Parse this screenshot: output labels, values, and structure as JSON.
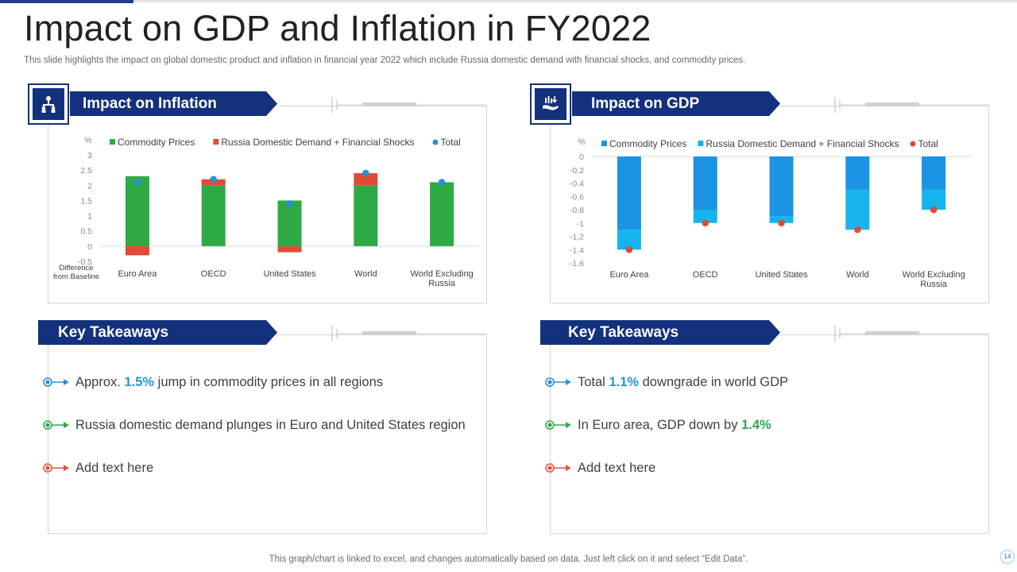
{
  "title": "Impact on GDP and Inflation in FY2022",
  "subtitle": "This slide highlights the impact on global domestic product and inflation in financial year 2022 which include Russia domestic demand with financial shocks, and commodity prices.",
  "colors": {
    "navy": "#14317d",
    "commodity_green": "#2eaa44",
    "russia_red": "#e14b35",
    "total_blue": "#2a8fd6",
    "commodity_blue": "#1a94e3",
    "russia_cyan": "#16b4ee",
    "total_red": "#dd4b39"
  },
  "inflation_panel": {
    "heading": "Impact on Inflation",
    "icon": "org-chart-icon"
  },
  "gdp_panel": {
    "heading": "Impact on GDP",
    "icon": "money-hand-icon"
  },
  "takeaways_left": {
    "heading": "Key Takeaways",
    "items": [
      {
        "pre": "Approx. ",
        "hl": "1.5%",
        "post": " jump  in commodity prices in all regions",
        "color": "#2a90d4",
        "hl_class": "hl-blue"
      },
      {
        "pre": "Russia domestic demand plunges  in Euro and United States region",
        "hl": "",
        "post": "",
        "color": "#2fa84a",
        "hl_class": "hl-green"
      },
      {
        "pre": "Add text here",
        "hl": "",
        "post": "",
        "color": "#e0533a",
        "hl_class": "hl-blue"
      }
    ]
  },
  "takeaways_right": {
    "heading": "Key Takeaways",
    "items": [
      {
        "pre": "Total ",
        "hl": "1.1%",
        "post": " downgrade in world GDP",
        "color": "#2a90d4",
        "hl_class": "hl-blue"
      },
      {
        "pre": "In  Euro area, GDP down by ",
        "hl": "1.4%",
        "post": "",
        "color": "#2fa84a",
        "hl_class": "hl-green"
      },
      {
        "pre": "Add text here",
        "hl": "",
        "post": "",
        "color": "#e0533a",
        "hl_class": "hl-blue"
      }
    ]
  },
  "footer": "This graph/chart is linked to excel,  and changes automatically based on data. Just left click on it and select “Edit Data”.",
  "page_number": "14",
  "chart_data": [
    {
      "type": "bar",
      "stacked": true,
      "title": "Impact on Inflation",
      "ylabel": "%",
      "xlabel_lines": [
        "Difference",
        "from Baseline"
      ],
      "categories": [
        [
          "Euro Area"
        ],
        [
          "OECD"
        ],
        [
          "United States"
        ],
        [
          "World"
        ],
        [
          "World Excluding",
          "Russia"
        ]
      ],
      "series": [
        {
          "name": "Commodity Prices",
          "kind": "bar",
          "color": "#2eaa44",
          "values": [
            2.3,
            2.0,
            1.5,
            2.0,
            2.1
          ]
        },
        {
          "name": "Russia Domestic Demand + Financial Shocks",
          "kind": "bar",
          "color": "#e14b35",
          "values": [
            -0.3,
            0.2,
            -0.2,
            0.4,
            0.0
          ]
        },
        {
          "name": "Total",
          "kind": "dot",
          "color": "#2a8fd6",
          "values": [
            2.1,
            2.2,
            1.4,
            2.4,
            2.1
          ]
        }
      ],
      "ylim": [
        -0.5,
        3
      ],
      "yticks": [
        "-0.5",
        "0",
        "0.5",
        "1",
        "1.5",
        "2",
        "2.5",
        "3"
      ],
      "legend": "top"
    },
    {
      "type": "bar",
      "stacked": true,
      "title": "Impact on GDP",
      "ylabel": "%",
      "categories": [
        [
          "Euro Area"
        ],
        [
          "OECD"
        ],
        [
          "United States"
        ],
        [
          "World"
        ],
        [
          "World Excluding",
          "Russia"
        ]
      ],
      "series": [
        {
          "name": "Commodity Prices",
          "kind": "bar",
          "color": "#1a94e3",
          "values": [
            -1.1,
            -0.8,
            -0.9,
            -0.5,
            -0.5
          ]
        },
        {
          "name": "Russia Domestic Demand + Financial Shocks",
          "kind": "bar",
          "color": "#16b4ee",
          "values": [
            -0.3,
            -0.2,
            -0.1,
            -0.6,
            -0.3
          ]
        },
        {
          "name": "Total",
          "kind": "dot",
          "color": "#dd4b39",
          "values": [
            -1.4,
            -1.0,
            -1.0,
            -1.1,
            -0.8
          ]
        }
      ],
      "ylim": [
        -1.6,
        0
      ],
      "yticks": [
        "0",
        "-0.2",
        "-0.4",
        "-0.6",
        "-0.8",
        "-1",
        "-1.2",
        "-1.4",
        "-1.6"
      ],
      "legend": "top"
    }
  ]
}
